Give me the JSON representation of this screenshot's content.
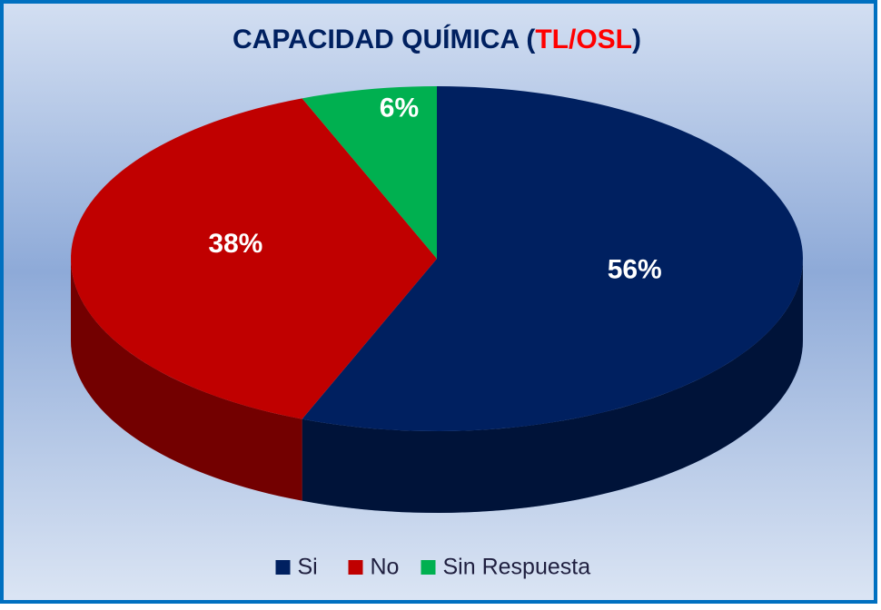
{
  "chart_data": {
    "type": "pie3d",
    "title_segments": [
      {
        "text": "CAPACIDAD QUÍMICA (",
        "color": "#002060"
      },
      {
        "text": "TL/OSL",
        "color": "#ff0000"
      },
      {
        "text": ")",
        "color": "#002060"
      }
    ],
    "categories": [
      "Si",
      "No",
      "Sin Respuesta"
    ],
    "values": [
      56,
      38,
      6
    ],
    "value_labels": [
      "56%",
      "38%",
      "6%"
    ],
    "colors": [
      "#002060",
      "#c00000",
      "#00b050"
    ],
    "legend": "bottom"
  }
}
